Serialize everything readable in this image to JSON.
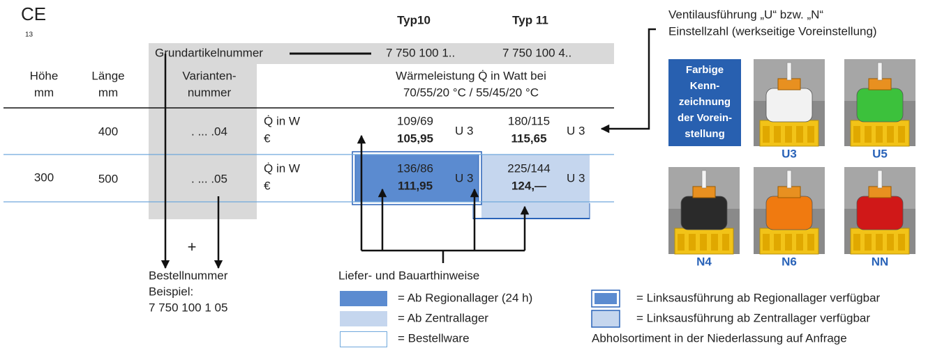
{
  "ce": {
    "mark": "CE",
    "number": "13"
  },
  "table": {
    "type_headers": [
      "Typ10",
      "Typ 11"
    ],
    "base_article": {
      "label": "Grundartikelnummer",
      "values": [
        "7 750 100 1..",
        "7 750 100 4.."
      ]
    },
    "columns": {
      "height": [
        "Höhe",
        "mm"
      ],
      "length": [
        "Länge",
        "mm"
      ],
      "variant": [
        "Varianten-",
        "nummer"
      ],
      "output": [
        "Wärmeleistung Q̇ in Watt bei",
        "70/55/20 °C / 55/45/20 °C"
      ]
    },
    "height": "300",
    "rows": [
      {
        "length": "400",
        "variant": ". ... .04",
        "labels": [
          "Q̇ in W",
          "€"
        ],
        "cells": [
          {
            "output": "109/69",
            "price": "105,95",
            "valve": "U 3"
          },
          {
            "output": "180/115",
            "price": "115,65",
            "valve": "U 3"
          }
        ]
      },
      {
        "length": "500",
        "variant": ". ... .05",
        "labels": [
          "Q̇ in W",
          "€"
        ],
        "cells": [
          {
            "output": "136/86",
            "price": "111,95",
            "valve": "U 3"
          },
          {
            "output": "225/144",
            "price": "124,—",
            "valve": "U 3"
          }
        ]
      }
    ]
  },
  "order_example": {
    "plus": "+",
    "lines": [
      "Bestellnummer",
      "Beispiel:",
      "7 750 100 1  05"
    ]
  },
  "legend": {
    "title": "Liefer- und Bauarthinweise",
    "items": [
      "= Ab Regionallager (24 h)",
      "= Ab Zentrallager",
      "= Bestellware"
    ],
    "left_hand_items": [
      "= Linksausführung ab Regionallager verfügbar",
      "= Linksausführung ab Zentrallager verfügbar"
    ],
    "note": "Abholsortiment in der Niederlassung auf Anfrage"
  },
  "valves": {
    "caption": [
      "Ventilausführung „U“ bzw. „N“",
      "Einstellzahl (werkseitige Voreinstellung)"
    ],
    "badge": [
      "Farbige",
      "Kenn-",
      "zeichnung",
      "der Vorein-",
      "stellung"
    ],
    "items": [
      {
        "label": "U3",
        "color": "#f2f2f2"
      },
      {
        "label": "U5",
        "color": "#3cc13c"
      },
      {
        "label": "N4",
        "color": "#2a2a2a"
      },
      {
        "label": "N6",
        "color": "#f07a10"
      },
      {
        "label": "NN",
        "color": "#d01818"
      }
    ]
  }
}
